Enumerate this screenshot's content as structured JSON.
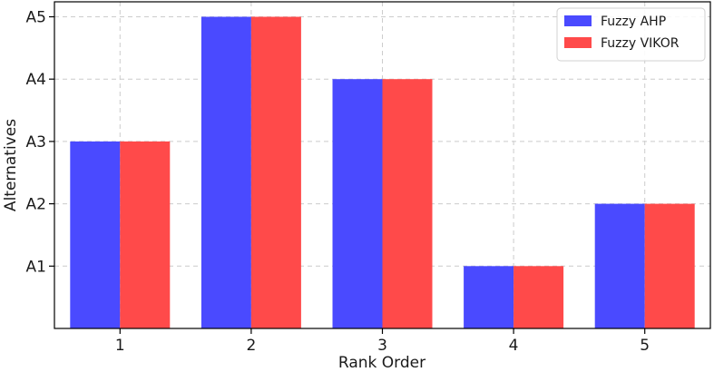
{
  "chart_data": {
    "type": "bar",
    "categories": [
      "1",
      "2",
      "3",
      "4",
      "5"
    ],
    "yticks": [
      1,
      2,
      3,
      4,
      5
    ],
    "ytick_labels": [
      "A1",
      "A2",
      "A3",
      "A4",
      "A5"
    ],
    "series": [
      {
        "name": "Fuzzy AHP",
        "color": "#4a4aff",
        "values": [
          3,
          5,
          4,
          1,
          2
        ]
      },
      {
        "name": "Fuzzy VIKOR",
        "color": "#ff4a4a",
        "values": [
          3,
          5,
          4,
          1,
          2
        ]
      }
    ],
    "xlabel": "Rank Order",
    "ylabel": "Alternatives",
    "ylim": [
      0,
      5
    ],
    "grid": true,
    "legend_position": "top-right"
  }
}
